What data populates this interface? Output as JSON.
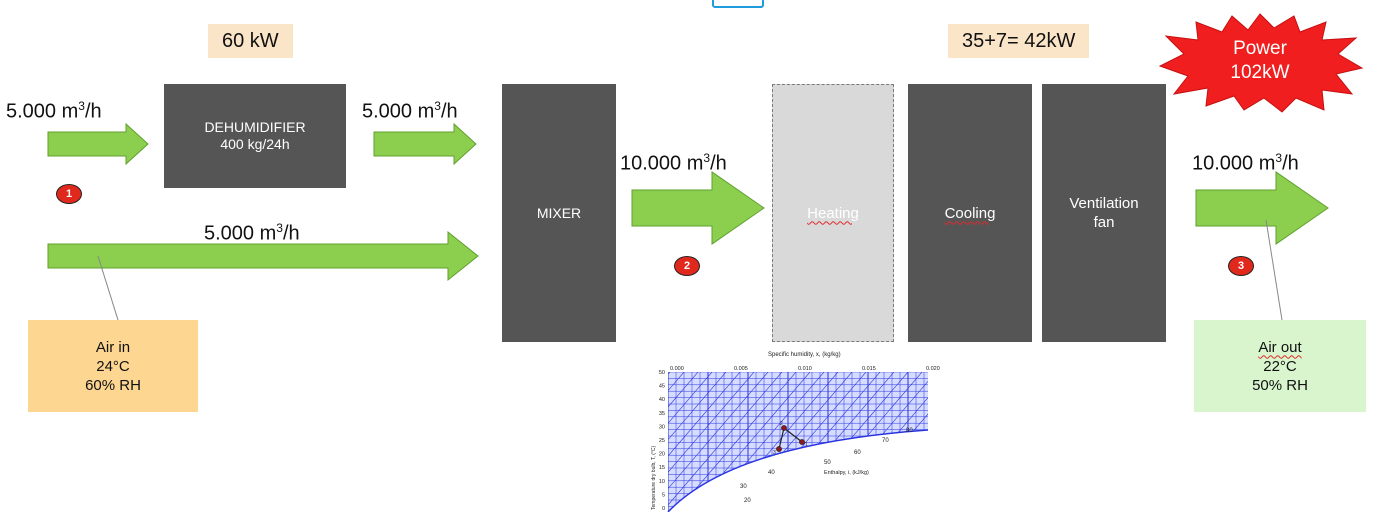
{
  "power_top": "60 kW",
  "power_top_right": "35+7= 42kW",
  "power_burst": {
    "line1": "Power",
    "line2": "102kW"
  },
  "flows": {
    "in_top": {
      "value": "5.000 m",
      "sup": "3",
      "unit": "/h"
    },
    "after_dehum": {
      "value": "5.000 m",
      "sup": "3",
      "unit": "/h"
    },
    "bypass": {
      "value": "5.000 m",
      "sup": "3",
      "unit": "/h"
    },
    "after_mixer": {
      "value": "10.000 m",
      "sup": "3",
      "unit": "/h"
    },
    "out": {
      "value": "10.000 m",
      "sup": "3",
      "unit": "/h"
    }
  },
  "dehumidifier": {
    "line1": "DEHUMIDIFIER",
    "line2": "400 kg/24h"
  },
  "mixer": "MIXER",
  "heating": "Heating",
  "cooling": "Cooling",
  "ventilation": {
    "line1": "Ventilation",
    "line2": "fan"
  },
  "markers": [
    "1",
    "2",
    "3"
  ],
  "air_in": {
    "title": "Air in",
    "temp": "24°C",
    "rh": "60% RH"
  },
  "air_out": {
    "title": "Air out",
    "temp": "22°C",
    "rh": "50% RH"
  },
  "psychro": {
    "top_axis_title": "Specific humidity, x, (kg/kg)",
    "top_ticks": [
      "0.000",
      "0.005",
      "0.010",
      "0.015",
      "0.020"
    ],
    "left_axis_title": "Temperature dry bulb, T, (°C)",
    "left_ticks": [
      "50",
      "45",
      "40",
      "35",
      "30",
      "25",
      "20",
      "15",
      "10",
      "5",
      "0"
    ],
    "enthalpy_title": "Enthalpy, i, (kJ/kg)",
    "enthalpy_ticks": [
      "20",
      "30",
      "40",
      "50",
      "60",
      "70",
      "80"
    ],
    "points": [
      "1",
      "2",
      "3"
    ],
    "colors": {
      "grid": "#2a35e0",
      "fill": "#d6dcff"
    }
  },
  "colors": {
    "arrow": "#8ccf4e",
    "arrow_stroke": "#5f9f2d",
    "box": "#555555",
    "marker": "#e0281c",
    "burst": "#f01e1e"
  }
}
